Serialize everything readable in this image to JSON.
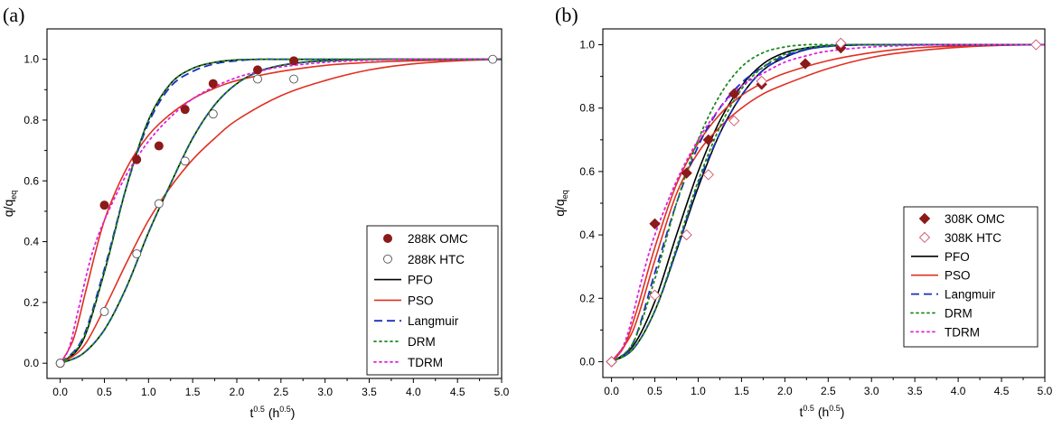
{
  "chart_data": [
    {
      "panel_label": "(a)",
      "type": "scatter",
      "xlabel": "t^0.5 (h^0.5)",
      "xlabel_main": "t",
      "xlabel_sup": "0.5",
      "xlabel_unit_open": " (h",
      "xlabel_unit_sup": "0.5",
      "xlabel_unit_close": ")",
      "ylabel": "q/q_eq",
      "ylabel_main": "q/q",
      "ylabel_sub": "eq",
      "xlim": [
        -0.15,
        5.0
      ],
      "ylim": [
        -0.05,
        1.1
      ],
      "xticks": [
        "0.0",
        "0.5",
        "1.0",
        "1.5",
        "2.0",
        "2.5",
        "3.0",
        "3.5",
        "4.0",
        "4.5",
        "5.0"
      ],
      "yticks": [
        "0.0",
        "0.2",
        "0.4",
        "0.6",
        "0.8",
        "1.0"
      ],
      "legend_position": "bottom-right",
      "points": [
        {
          "name": "288K OMC",
          "marker": "circle",
          "fill": "#8b1a1a",
          "stroke": "#8b1a1a",
          "x": [
            0,
            0.5,
            0.866,
            1.118,
            1.414,
            1.732,
            2.236,
            2.646
          ],
          "y": [
            0.0,
            0.52,
            0.67,
            0.715,
            0.835,
            0.92,
            0.965,
            0.995
          ]
        },
        {
          "name": "288K HTC",
          "marker": "circle-open",
          "fill": "none",
          "stroke": "#555555",
          "x": [
            0,
            0.5,
            0.866,
            1.118,
            1.414,
            1.732,
            2.236,
            2.646,
            4.899
          ],
          "y": [
            0.0,
            0.17,
            0.36,
            0.525,
            0.665,
            0.82,
            0.935,
            0.935,
            1.0
          ]
        }
      ],
      "lines": [
        {
          "name": "PFO",
          "color": "#000000",
          "dash": "solid",
          "series": [
            {
              "x": [
                0,
                0.25,
                0.5,
                0.75,
                1.0,
                1.25,
                1.5,
                1.75,
                2.0,
                2.25,
                2.5,
                3.0,
                3.5,
                4.0,
                4.5,
                5.0
              ],
              "y": [
                0.0,
                0.07,
                0.3,
                0.58,
                0.8,
                0.92,
                0.97,
                0.99,
                0.998,
                1.0,
                1.0,
                1.0,
                1.0,
                1.0,
                1.0,
                1.0
              ]
            },
            {
              "x": [
                0,
                0.25,
                0.5,
                0.75,
                1.0,
                1.25,
                1.5,
                1.75,
                2.0,
                2.25,
                2.5,
                2.75,
                3.0,
                3.5,
                4.0,
                4.5,
                5.0
              ],
              "y": [
                0.0,
                0.03,
                0.11,
                0.25,
                0.43,
                0.59,
                0.74,
                0.85,
                0.92,
                0.96,
                0.98,
                0.99,
                0.995,
                1.0,
                1.0,
                1.0,
                1.0
              ]
            }
          ]
        },
        {
          "name": "PSO",
          "color": "#e03020",
          "dash": "solid",
          "series": [
            {
              "x": [
                0,
                0.15,
                0.3,
                0.5,
                0.75,
                1.0,
                1.25,
                1.5,
                1.75,
                2.0,
                2.5,
                3.0,
                3.5,
                4.0,
                4.5,
                5.0
              ],
              "y": [
                0.0,
                0.08,
                0.25,
                0.47,
                0.64,
                0.75,
                0.82,
                0.87,
                0.905,
                0.93,
                0.96,
                0.98,
                0.99,
                0.995,
                0.998,
                1.0
              ]
            },
            {
              "x": [
                0,
                0.25,
                0.5,
                0.75,
                1.0,
                1.25,
                1.5,
                1.75,
                2.0,
                2.5,
                3.0,
                3.5,
                4.0,
                4.5,
                5.0
              ],
              "y": [
                0.0,
                0.05,
                0.18,
                0.33,
                0.47,
                0.58,
                0.67,
                0.74,
                0.8,
                0.88,
                0.93,
                0.965,
                0.985,
                0.995,
                1.0
              ]
            }
          ]
        },
        {
          "name": "Langmuir",
          "color": "#1a2fbf",
          "dash": "9,5",
          "series": [
            {
              "x": [
                0,
                0.25,
                0.5,
                0.75,
                1.0,
                1.25,
                1.5,
                1.75,
                2.0,
                2.25,
                2.5,
                3.0,
                3.5,
                4.0,
                5.0
              ],
              "y": [
                0.0,
                0.08,
                0.31,
                0.58,
                0.79,
                0.91,
                0.96,
                0.985,
                0.995,
                1.0,
                1.0,
                1.0,
                1.0,
                1.0,
                1.0
              ]
            },
            {
              "x": [
                0,
                0.25,
                0.5,
                0.75,
                1.0,
                1.25,
                1.5,
                1.75,
                2.0,
                2.25,
                2.5,
                2.75,
                3.0,
                3.5,
                4.0,
                5.0
              ],
              "y": [
                0.0,
                0.03,
                0.11,
                0.25,
                0.43,
                0.59,
                0.74,
                0.85,
                0.92,
                0.96,
                0.98,
                0.99,
                0.995,
                1.0,
                1.0,
                1.0
              ]
            }
          ]
        },
        {
          "name": "DRM",
          "color": "#1a8a1a",
          "dash": "2,4",
          "series": [
            {
              "x": [
                0,
                0.25,
                0.5,
                0.75,
                1.0,
                1.25,
                1.5,
                1.75,
                2.0,
                2.25,
                2.5,
                3.0,
                3.5,
                4.0,
                5.0
              ],
              "y": [
                0.0,
                0.075,
                0.3,
                0.58,
                0.8,
                0.92,
                0.97,
                0.99,
                0.998,
                1.0,
                1.0,
                1.0,
                1.0,
                1.0,
                1.0
              ]
            },
            {
              "x": [
                0,
                0.25,
                0.5,
                0.75,
                1.0,
                1.25,
                1.5,
                1.75,
                2.0,
                2.25,
                2.5,
                2.75,
                3.0,
                3.5,
                4.0,
                5.0
              ],
              "y": [
                0.0,
                0.03,
                0.11,
                0.25,
                0.43,
                0.59,
                0.74,
                0.85,
                0.92,
                0.96,
                0.98,
                0.99,
                0.995,
                1.0,
                1.0,
                1.0
              ]
            }
          ]
        },
        {
          "name": "TDRM",
          "color": "#e020e0",
          "dash": "2,4",
          "series": [
            {
              "x": [
                0,
                0.1,
                0.2,
                0.35,
                0.5,
                0.75,
                1.0,
                1.25,
                1.5,
                1.75,
                2.0,
                2.25,
                2.5,
                3.0,
                3.5,
                4.0,
                5.0
              ],
              "y": [
                0.0,
                0.05,
                0.17,
                0.35,
                0.47,
                0.62,
                0.73,
                0.81,
                0.87,
                0.91,
                0.94,
                0.96,
                0.975,
                0.99,
                0.997,
                1.0,
                1.0
              ]
            }
          ]
        }
      ],
      "legend": [
        "288K OMC",
        "288K HTC",
        "PFO",
        "PSO",
        "Langmuir",
        "DRM",
        "TDRM"
      ]
    },
    {
      "panel_label": "(b)",
      "type": "scatter",
      "xlabel": "t^0.5 (h^0.5)",
      "xlabel_main": "t",
      "xlabel_sup": "0.5",
      "xlabel_unit_open": " (h",
      "xlabel_unit_sup": "0.5",
      "xlabel_unit_close": ")",
      "ylabel": "q/q_eq",
      "ylabel_main": "q/q",
      "ylabel_sub": "eq",
      "xlim": [
        -0.1,
        5.0
      ],
      "ylim": [
        -0.05,
        1.05
      ],
      "xticks": [
        "0.0",
        "0.5",
        "1.0",
        "1.5",
        "2.0",
        "2.5",
        "3.0",
        "3.5",
        "4.0",
        "4.5",
        "5.0"
      ],
      "yticks": [
        "0.0",
        "0.2",
        "0.4",
        "0.6",
        "0.8",
        "1.0"
      ],
      "legend_position": "bottom-right",
      "points": [
        {
          "name": "308K OMC",
          "marker": "diamond",
          "fill": "#8b1a1a",
          "stroke": "#8b1a1a",
          "x": [
            0,
            0.5,
            0.866,
            1.118,
            1.414,
            1.732,
            2.236,
            2.646
          ],
          "y": [
            0.0,
            0.435,
            0.595,
            0.7,
            0.845,
            0.875,
            0.94,
            0.99
          ]
        },
        {
          "name": "308K HTC",
          "marker": "diamond-open",
          "fill": "none",
          "stroke": "#d0506a",
          "x": [
            0,
            0.5,
            0.866,
            1.118,
            1.414,
            1.732,
            2.646,
            4.899
          ],
          "y": [
            0.0,
            0.21,
            0.4,
            0.59,
            0.76,
            0.885,
            1.005,
            1.0
          ]
        }
      ],
      "lines": [
        {
          "name": "PFO",
          "color": "#000000",
          "dash": "solid",
          "series": [
            {
              "x": [
                0,
                0.25,
                0.5,
                0.75,
                1.0,
                1.25,
                1.5,
                1.75,
                2.0,
                2.25,
                2.5,
                3.0,
                3.5,
                4.0,
                5.0
              ],
              "y": [
                0.0,
                0.04,
                0.16,
                0.35,
                0.55,
                0.72,
                0.84,
                0.92,
                0.96,
                0.985,
                0.995,
                1.0,
                1.0,
                1.0,
                1.0
              ]
            },
            {
              "x": [
                0,
                0.25,
                0.5,
                0.75,
                1.0,
                1.25,
                1.5,
                1.75,
                2.0,
                2.25,
                2.5,
                2.75,
                3.0,
                3.5,
                4.0,
                5.0
              ],
              "y": [
                0.0,
                0.05,
                0.19,
                0.4,
                0.6,
                0.76,
                0.87,
                0.94,
                0.975,
                0.99,
                0.997,
                1.0,
                1.0,
                1.0,
                1.0,
                1.0
              ]
            }
          ]
        },
        {
          "name": "PSO",
          "color": "#e03020",
          "dash": "solid",
          "series": [
            {
              "x": [
                0,
                0.15,
                0.3,
                0.5,
                0.75,
                1.0,
                1.25,
                1.5,
                1.75,
                2.0,
                2.5,
                3.0,
                3.5,
                4.0,
                4.5,
                5.0
              ],
              "y": [
                0.0,
                0.05,
                0.17,
                0.36,
                0.56,
                0.69,
                0.78,
                0.84,
                0.88,
                0.91,
                0.95,
                0.975,
                0.99,
                0.996,
                0.999,
                1.0
              ]
            },
            {
              "x": [
                0,
                0.25,
                0.5,
                0.75,
                1.0,
                1.25,
                1.5,
                1.75,
                2.0,
                2.5,
                3.0,
                3.5,
                4.0,
                4.5,
                5.0
              ],
              "y": [
                0.0,
                0.1,
                0.32,
                0.53,
                0.66,
                0.74,
                0.8,
                0.845,
                0.875,
                0.925,
                0.96,
                0.98,
                0.992,
                0.998,
                1.0
              ]
            }
          ]
        },
        {
          "name": "Langmuir",
          "color": "#1a2fbf",
          "dash": "9,5",
          "series": [
            {
              "x": [
                0,
                0.25,
                0.5,
                0.75,
                1.0,
                1.25,
                1.5,
                1.75,
                2.0,
                2.25,
                2.5,
                3.0,
                3.5,
                5.0
              ],
              "y": [
                0.0,
                0.06,
                0.28,
                0.5,
                0.68,
                0.8,
                0.88,
                0.93,
                0.965,
                0.985,
                0.995,
                1.0,
                1.0,
                1.0
              ]
            },
            {
              "x": [
                0,
                0.25,
                0.5,
                0.75,
                1.0,
                1.25,
                1.5,
                1.75,
                2.0,
                2.25,
                2.5,
                2.75,
                3.0,
                3.5,
                4.0,
                5.0
              ],
              "y": [
                0.0,
                0.04,
                0.16,
                0.35,
                0.56,
                0.72,
                0.84,
                0.92,
                0.96,
                0.985,
                0.995,
                1.0,
                1.0,
                1.0,
                1.0,
                1.0
              ]
            }
          ]
        },
        {
          "name": "DRM",
          "color": "#1a8a1a",
          "dash": "2,4",
          "series": [
            {
              "x": [
                0,
                0.25,
                0.5,
                0.75,
                1.0,
                1.25,
                1.5,
                1.75,
                2.0,
                2.25,
                2.5,
                3.0,
                3.5,
                5.0
              ],
              "y": [
                0.0,
                0.06,
                0.26,
                0.5,
                0.7,
                0.84,
                0.93,
                0.975,
                0.993,
                1.0,
                1.0,
                1.0,
                1.0,
                1.0
              ]
            },
            {
              "x": [
                0,
                0.25,
                0.5,
                0.75,
                1.0,
                1.25,
                1.5,
                1.75,
                2.0,
                2.25,
                2.5,
                2.75,
                3.0,
                3.5,
                4.0,
                5.0
              ],
              "y": [
                0.0,
                0.04,
                0.16,
                0.36,
                0.57,
                0.74,
                0.86,
                0.93,
                0.97,
                0.99,
                0.997,
                1.0,
                1.0,
                1.0,
                1.0,
                1.0
              ]
            }
          ]
        },
        {
          "name": "TDRM",
          "color": "#e020e0",
          "dash": "2,4",
          "series": [
            {
              "x": [
                0,
                0.1,
                0.2,
                0.35,
                0.5,
                0.75,
                1.0,
                1.25,
                1.5,
                1.75,
                2.0,
                2.25,
                2.5,
                3.0,
                3.5,
                4.0,
                5.0
              ],
              "y": [
                0.0,
                0.03,
                0.1,
                0.26,
                0.4,
                0.57,
                0.7,
                0.8,
                0.87,
                0.91,
                0.945,
                0.965,
                0.98,
                0.993,
                0.998,
                1.0,
                1.0
              ]
            }
          ]
        }
      ],
      "legend": [
        "308K OMC",
        "308K HTC",
        "PFO",
        "PSO",
        "Langmuir",
        "DRM",
        "TDRM"
      ]
    }
  ]
}
